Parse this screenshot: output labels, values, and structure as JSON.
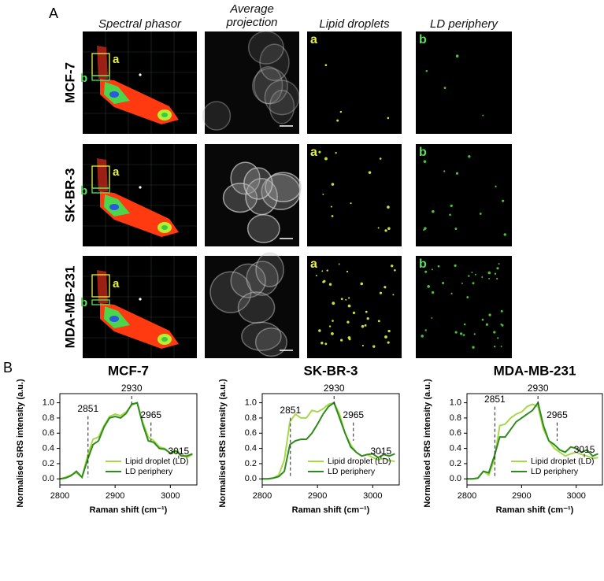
{
  "panel_a": {
    "label": "A",
    "columns": [
      "Spectral phasor",
      "Average projection",
      "Lipid droplets",
      "LD periphery"
    ],
    "rows": [
      "MCF-7",
      "SK-BR-3",
      "MDA-MB-231"
    ],
    "tags": [
      "a",
      "b"
    ]
  },
  "panel_b": {
    "label": "B"
  },
  "chart_data": [
    {
      "type": "line",
      "title": "MCF-7",
      "x_label": "Raman shift (cm⁻¹)",
      "y_label": "Normalised SRS intensity (a.u.)",
      "x": [
        2800,
        2810,
        2820,
        2830,
        2840,
        2850,
        2860,
        2870,
        2880,
        2890,
        2900,
        2910,
        2920,
        2930,
        2940,
        2950,
        2960,
        2970,
        2980,
        2990,
        3000,
        3010,
        3020,
        3030,
        3040
      ],
      "series": [
        {
          "name": "Lipid droplet (LD)",
          "color": "#a6d94a",
          "values": [
            0,
            0.02,
            0.05,
            0.08,
            0.02,
            0.3,
            0.52,
            0.55,
            0.7,
            0.82,
            0.85,
            0.83,
            0.88,
            0.97,
            1.0,
            0.75,
            0.55,
            0.5,
            0.42,
            0.4,
            0.33,
            0.35,
            0.33,
            0.28,
            0.32
          ]
        },
        {
          "name": "LD periphery",
          "color": "#2e8b1e",
          "values": [
            0,
            0.01,
            0.04,
            0.1,
            0.02,
            0.25,
            0.45,
            0.5,
            0.68,
            0.8,
            0.82,
            0.8,
            0.86,
            0.98,
            1.0,
            0.72,
            0.5,
            0.48,
            0.4,
            0.39,
            0.34,
            0.37,
            0.3,
            0.3,
            0.33
          ]
        }
      ],
      "annotations": [
        {
          "label": "2851",
          "x": 2851
        },
        {
          "label": "2930",
          "x": 2930
        },
        {
          "label": "2965",
          "x": 2965
        },
        {
          "label": "3015",
          "x": 3015
        }
      ],
      "xlim": [
        2800,
        3048
      ],
      "xticks": [
        2800,
        2900,
        3000
      ],
      "ylim": [
        -0.08,
        1.12
      ],
      "yticks": [
        {
          "value": 0,
          "label": "0.0"
        },
        0.2,
        0.4,
        0.6,
        0.8,
        {
          "value": 1,
          "label": "1.0"
        }
      ],
      "legend": "lower right"
    },
    {
      "type": "line",
      "title": "SK-BR-3",
      "x_label": "Raman shift (cm⁻¹)",
      "y_label": "Normalised SRS intensity (a.u.)",
      "x": [
        2800,
        2810,
        2820,
        2830,
        2840,
        2850,
        2860,
        2870,
        2880,
        2890,
        2900,
        2910,
        2920,
        2930,
        2940,
        2950,
        2960,
        2970,
        2980,
        2990,
        3000,
        3010,
        3020,
        3030,
        3040
      ],
      "series": [
        {
          "name": "Lipid droplet (LD)",
          "color": "#a6d94a",
          "values": [
            0,
            0,
            0.01,
            0.05,
            0.25,
            0.75,
            0.85,
            0.8,
            0.8,
            0.9,
            0.88,
            0.92,
            0.98,
            1.0,
            0.85,
            0.6,
            0.45,
            0.35,
            0.3,
            0.32,
            0.28,
            0.25,
            0.27,
            0.24,
            0.23
          ]
        },
        {
          "name": "LD periphery",
          "color": "#2e8b1e",
          "values": [
            0,
            0,
            0.01,
            0.03,
            0.1,
            0.45,
            0.5,
            0.52,
            0.52,
            0.6,
            0.72,
            0.85,
            0.95,
            1.0,
            0.8,
            0.6,
            0.42,
            0.35,
            0.3,
            0.32,
            0.33,
            0.28,
            0.32,
            0.3,
            0.33
          ]
        }
      ],
      "annotations": [
        {
          "label": "2851",
          "x": 2851
        },
        {
          "label": "2930",
          "x": 2930
        },
        {
          "label": "2965",
          "x": 2965
        },
        {
          "label": "3015",
          "x": 3015
        }
      ],
      "xlim": [
        2800,
        3048
      ],
      "xticks": [
        2800,
        2900,
        3000
      ],
      "ylim": [
        -0.08,
        1.12
      ],
      "yticks": [
        {
          "value": 0,
          "label": "0.0"
        },
        0.2,
        0.4,
        0.6,
        0.8,
        {
          "value": 1,
          "label": "1.0"
        }
      ],
      "legend": "lower right"
    },
    {
      "type": "line",
      "title": "MDA-MB-231",
      "x_label": "Raman shift (cm⁻¹)",
      "y_label": "Normalised SRS intensity (a.u.)",
      "x": [
        2800,
        2810,
        2820,
        2830,
        2840,
        2850,
        2860,
        2870,
        2880,
        2890,
        2900,
        2910,
        2920,
        2930,
        2940,
        2950,
        2960,
        2970,
        2980,
        2990,
        3000,
        3010,
        3020,
        3030,
        3040
      ],
      "series": [
        {
          "name": "Lipid droplet (LD)",
          "color": "#a6d94a",
          "values": [
            0,
            0,
            0.01,
            0.1,
            0.05,
            0.25,
            0.7,
            0.72,
            0.8,
            0.85,
            0.88,
            0.95,
            0.98,
            0.95,
            0.65,
            0.5,
            0.4,
            0.35,
            0.3,
            0.33,
            0.35,
            0.32,
            0.3,
            0.27,
            0.28
          ]
        },
        {
          "name": "LD periphery",
          "color": "#2e8b1e",
          "values": [
            0,
            0,
            0.01,
            0.1,
            0.08,
            0.3,
            0.55,
            0.55,
            0.65,
            0.75,
            0.8,
            0.85,
            0.9,
            1.0,
            0.7,
            0.5,
            0.45,
            0.38,
            0.35,
            0.42,
            0.4,
            0.35,
            0.38,
            0.3,
            0.33
          ]
        }
      ],
      "annotations": [
        {
          "label": "2851",
          "x": 2851
        },
        {
          "label": "2930",
          "x": 2930
        },
        {
          "label": "2965",
          "x": 2965
        },
        {
          "label": "3015",
          "x": 3015
        }
      ],
      "xlim": [
        2800,
        3048
      ],
      "xticks": [
        2800,
        2900,
        3000
      ],
      "ylim": [
        -0.08,
        1.12
      ],
      "yticks": [
        {
          "value": 0,
          "label": "0.0"
        },
        0.2,
        0.4,
        0.6,
        0.8,
        {
          "value": 1,
          "label": "1.0"
        }
      ],
      "legend": "lower right"
    }
  ]
}
